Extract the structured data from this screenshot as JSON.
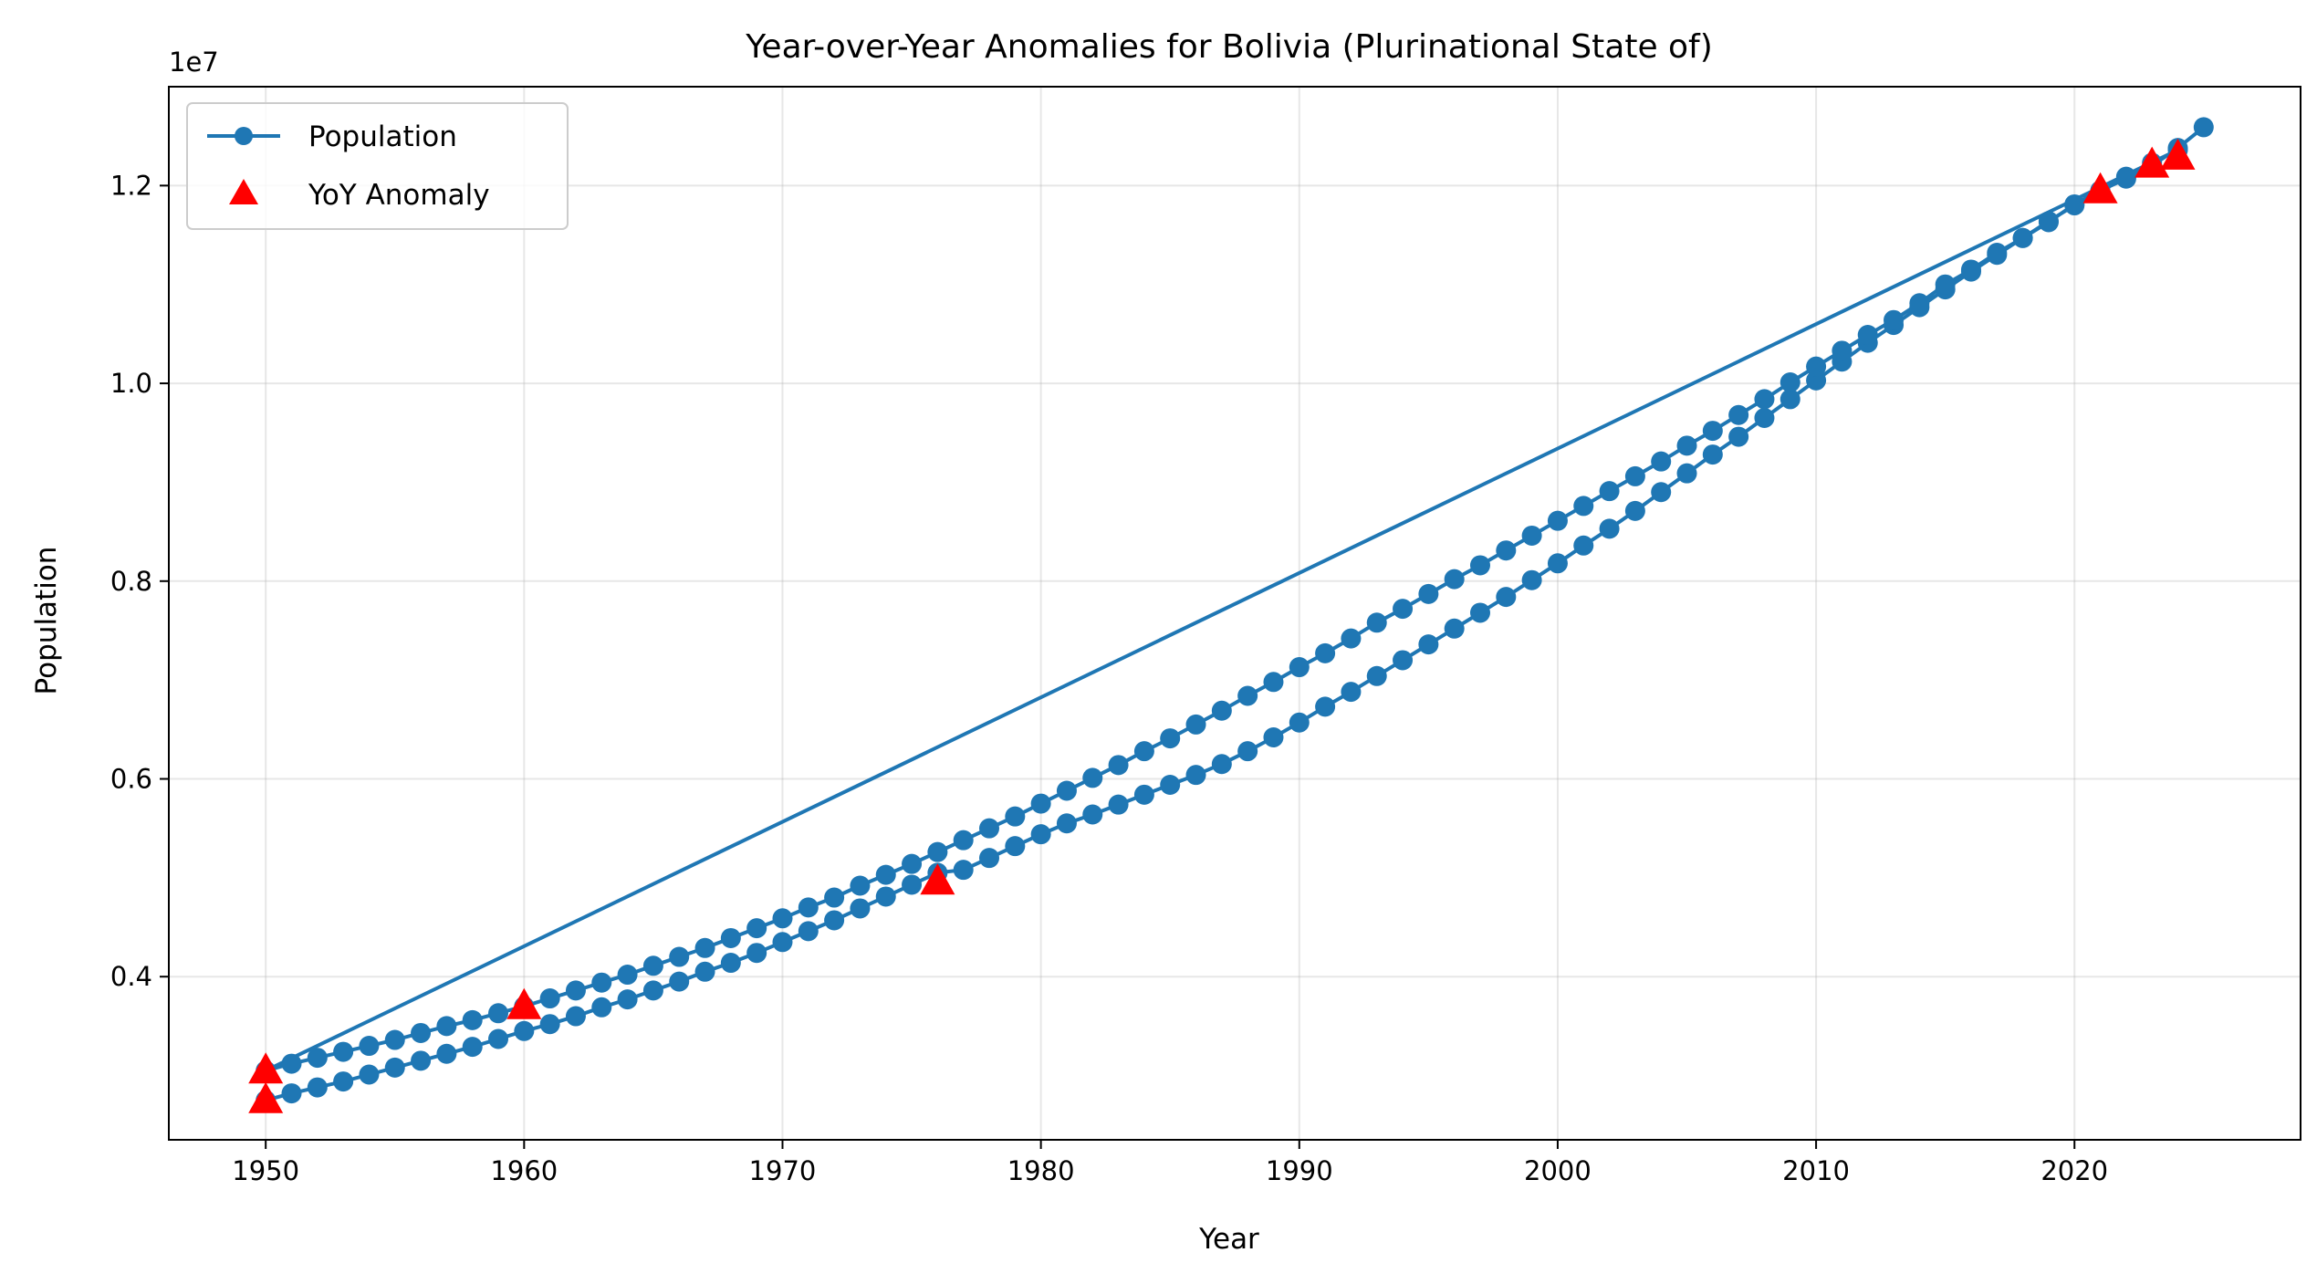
{
  "chart_data": {
    "type": "line",
    "title": "Year-over-Year Anomalies for Bolivia (Plurinational State of)",
    "xlabel": "Year",
    "ylabel": "Population",
    "y_offset_label": "1e7",
    "xlim": [
      1946.25,
      2028.75
    ],
    "ylim": [
      2350000,
      13000000
    ],
    "x_ticks": [
      1950,
      1960,
      1970,
      1980,
      1990,
      2000,
      2010,
      2020
    ],
    "x_tick_labels": [
      "1950",
      "1960",
      "1970",
      "1980",
      "1990",
      "2000",
      "2010",
      "2020"
    ],
    "y_ticks": [
      4000000,
      6000000,
      8000000,
      10000000,
      12000000
    ],
    "y_tick_labels": [
      "0.4",
      "0.6",
      "0.8",
      "1.0",
      "1.2"
    ],
    "grid": true,
    "legend_position": "top-left",
    "series": [
      {
        "name": "Population",
        "style": "line-marker",
        "color": "#1f77b4",
        "x": [
          1950,
          1951,
          1952,
          1953,
          1954,
          1955,
          1956,
          1957,
          1958,
          1959,
          1960,
          1961,
          1962,
          1963,
          1964,
          1965,
          1966,
          1967,
          1968,
          1969,
          1970,
          1971,
          1972,
          1973,
          1974,
          1975,
          1976,
          1977,
          1978,
          1979,
          1980,
          1981,
          1982,
          1983,
          1984,
          1985,
          1986,
          1987,
          1988,
          1989,
          1990,
          1991,
          1992,
          1993,
          1994,
          1995,
          1996,
          1997,
          1998,
          1999,
          2000,
          2001,
          2002,
          2003,
          2004,
          2005,
          2006,
          2007,
          2008,
          2009,
          2010,
          2011,
          2012,
          2013,
          2014,
          2015,
          2016,
          2017,
          2018,
          2019,
          2020,
          2021,
          2022,
          2023,
          2024,
          1950,
          1951,
          1952,
          1953,
          1954,
          1955,
          1956,
          1957,
          1958,
          1959,
          1960,
          1961,
          1962,
          1963,
          1964,
          1965,
          1966,
          1967,
          1968,
          1969,
          1970,
          1971,
          1972,
          1973,
          1974,
          1975,
          1976,
          1977,
          1978,
          1979,
          1980,
          1981,
          1982,
          1983,
          1984,
          1985,
          1986,
          1987,
          1988,
          1989,
          1990,
          1991,
          1992,
          1993,
          1994,
          1995,
          1996,
          1997,
          1998,
          1999,
          2000,
          2001,
          2002,
          2003,
          2004,
          2005,
          2006,
          2007,
          2008,
          2009,
          2010,
          2011,
          2012,
          2013,
          2014,
          2015,
          2016,
          2017,
          2018,
          2019,
          2020,
          2021,
          2022,
          2023,
          2024,
          2025
        ],
        "y": [
          2750000,
          2820000,
          2880000,
          2940000,
          3010000,
          3080000,
          3150000,
          3220000,
          3290000,
          3370000,
          3450000,
          3520000,
          3600000,
          3690000,
          3770000,
          3860000,
          3950000,
          4050000,
          4140000,
          4240000,
          4350000,
          4460000,
          4570000,
          4690000,
          4810000,
          4930000,
          5050000,
          5080000,
          5200000,
          5320000,
          5440000,
          5550000,
          5640000,
          5740000,
          5840000,
          5940000,
          6040000,
          6150000,
          6280000,
          6420000,
          6570000,
          6730000,
          6880000,
          7040000,
          7200000,
          7360000,
          7520000,
          7680000,
          7840000,
          8010000,
          8180000,
          8360000,
          8530000,
          8710000,
          8900000,
          9090000,
          9280000,
          9460000,
          9650000,
          9840000,
          10030000,
          10220000,
          10410000,
          10590000,
          10770000,
          10950000,
          11130000,
          11300000,
          11470000,
          11640000,
          11800000,
          11950000,
          12090000,
          12230000,
          12360000,
          3050000,
          3120000,
          3180000,
          3240000,
          3300000,
          3360000,
          3430000,
          3500000,
          3560000,
          3630000,
          3700000,
          3780000,
          3860000,
          3940000,
          4020000,
          4110000,
          4200000,
          4290000,
          4390000,
          4490000,
          4590000,
          4700000,
          4800000,
          4920000,
          5030000,
          5140000,
          5260000,
          5380000,
          5500000,
          5620000,
          5750000,
          5880000,
          6010000,
          6140000,
          6280000,
          6410000,
          6550000,
          6690000,
          6840000,
          6980000,
          7130000,
          7270000,
          7420000,
          7580000,
          7720000,
          7870000,
          8020000,
          8160000,
          8310000,
          8460000,
          8610000,
          8760000,
          8910000,
          9060000,
          9210000,
          9370000,
          9520000,
          9680000,
          9840000,
          10010000,
          10170000,
          10330000,
          10490000,
          10640000,
          10810000,
          11000000,
          11150000,
          11320000,
          11470000,
          11630000,
          11810000,
          11950000,
          12070000,
          12200000,
          12380000,
          12590000
        ]
      },
      {
        "name": "YoY Anomaly",
        "style": "triangle-marker",
        "color": "#ff0000",
        "x": [
          1950,
          1950,
          1960,
          1976,
          2021,
          2023,
          2024
        ],
        "y": [
          2750000,
          3050000,
          3700000,
          4960000,
          11950000,
          12210000,
          12290000
        ]
      }
    ]
  }
}
